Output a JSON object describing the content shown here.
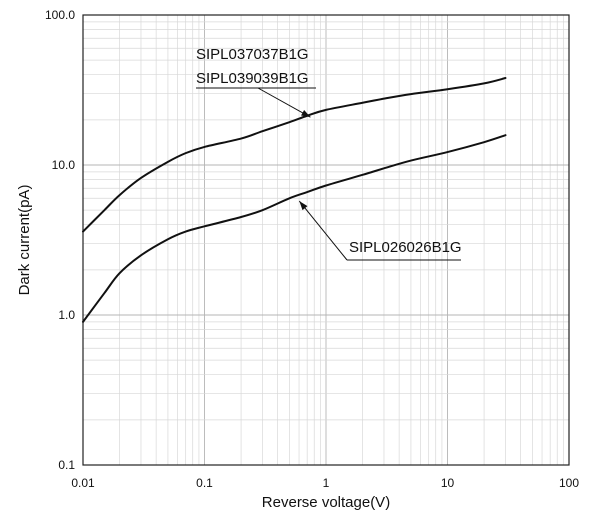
{
  "chart_data": {
    "type": "line",
    "xlabel": "Reverse voltage(V)",
    "ylabel": "Dark current(pA)",
    "x_scale": "log",
    "y_scale": "log",
    "xlim": [
      0.01,
      100
    ],
    "ylim": [
      0.1,
      100
    ],
    "grid": true,
    "x_ticks": [
      "0.01",
      "0.1",
      "1",
      "10",
      "100"
    ],
    "y_ticks": [
      "0.1",
      "1.0",
      "10.0",
      "100.0"
    ],
    "series": [
      {
        "name": "SIPL037037B1G\nSIPL039039B1G",
        "points": [
          [
            0.01,
            3.6
          ],
          [
            0.015,
            5.0
          ],
          [
            0.02,
            6.3
          ],
          [
            0.03,
            8.2
          ],
          [
            0.05,
            10.5
          ],
          [
            0.07,
            12.0
          ],
          [
            0.1,
            13.2
          ],
          [
            0.2,
            15.0
          ],
          [
            0.3,
            16.8
          ],
          [
            0.5,
            19.3
          ],
          [
            0.7,
            21.3
          ],
          [
            1.0,
            23.3
          ],
          [
            2.0,
            26.0
          ],
          [
            3.0,
            27.7
          ],
          [
            5.0,
            29.7
          ],
          [
            10.0,
            32.0
          ],
          [
            20.0,
            35.0
          ],
          [
            30.0,
            38.0
          ]
        ]
      },
      {
        "name": "SIPL026026B1G",
        "points": [
          [
            0.01,
            0.9
          ],
          [
            0.015,
            1.4
          ],
          [
            0.02,
            1.9
          ],
          [
            0.03,
            2.5
          ],
          [
            0.05,
            3.2
          ],
          [
            0.07,
            3.6
          ],
          [
            0.1,
            3.9
          ],
          [
            0.2,
            4.5
          ],
          [
            0.3,
            5.0
          ],
          [
            0.5,
            6.0
          ],
          [
            0.7,
            6.6
          ],
          [
            1.0,
            7.3
          ],
          [
            2.0,
            8.6
          ],
          [
            3.0,
            9.5
          ],
          [
            5.0,
            10.7
          ],
          [
            10.0,
            12.2
          ],
          [
            20.0,
            14.2
          ],
          [
            30.0,
            15.8
          ]
        ]
      }
    ],
    "annotations": [
      {
        "lines": [
          "SIPL037037B1G",
          "SIPL039039B1G"
        ],
        "target_x": 0.9,
        "target_y": 21.5,
        "tx": 0.25,
        "ty": 60.0
      },
      {
        "lines": [
          "SIPL026026B1G"
        ],
        "target_x": 0.57,
        "target_y": 6.3,
        "tx": 2.1,
        "ty": 2.5
      }
    ]
  }
}
